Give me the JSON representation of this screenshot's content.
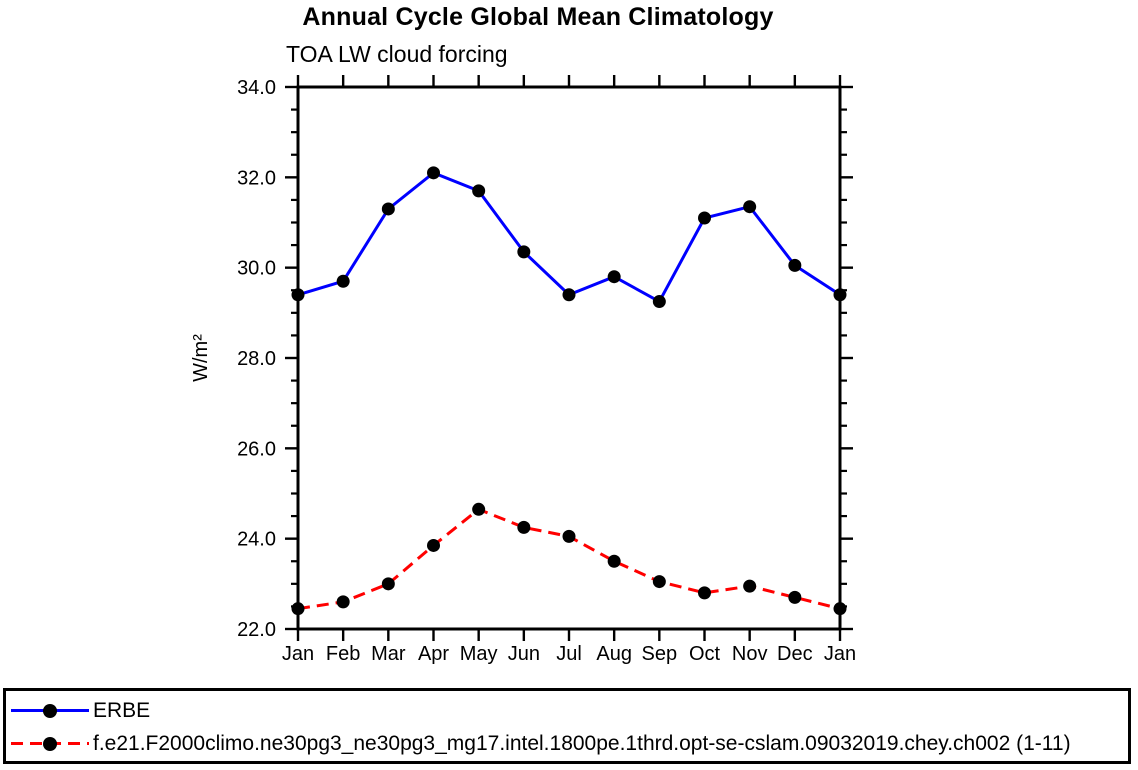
{
  "chart_data": {
    "type": "line",
    "title": "Annual Cycle Global Mean Climatology",
    "subtitle": "TOA LW cloud forcing",
    "xlabel": "",
    "ylabel": "W/m²",
    "categories": [
      "Jan",
      "Feb",
      "Mar",
      "Apr",
      "May",
      "Jun",
      "Jul",
      "Aug",
      "Sep",
      "Oct",
      "Nov",
      "Dec",
      "Jan"
    ],
    "ylim": [
      22.0,
      34.0
    ],
    "y_major_ticks": [
      34.0,
      32.0,
      30.0,
      28.0,
      26.0,
      24.0,
      22.0
    ],
    "y_minor_step": 0.5,
    "grid": false,
    "legend_position": "bottom",
    "frame_color": "#000000",
    "series": [
      {
        "name": "ERBE",
        "color": "#0000ff",
        "line_style": "solid",
        "marker": "filled-circle",
        "marker_color": "#000000",
        "values": [
          29.4,
          29.7,
          31.3,
          32.1,
          31.7,
          30.35,
          29.4,
          29.8,
          29.25,
          31.1,
          31.35,
          30.05,
          29.4
        ]
      },
      {
        "name": "f.e21.F2000climo.ne30pg3_ne30pg3_mg17.intel.1800pe.1thrd.opt-se-cslam.09032019.chey.ch002 (1-11)",
        "color": "#ff0000",
        "line_style": "dashed",
        "marker": "filled-circle",
        "marker_color": "#000000",
        "values": [
          22.45,
          22.6,
          23.0,
          23.85,
          24.65,
          24.25,
          24.05,
          23.5,
          23.05,
          22.8,
          22.95,
          22.7,
          22.45
        ]
      }
    ]
  }
}
